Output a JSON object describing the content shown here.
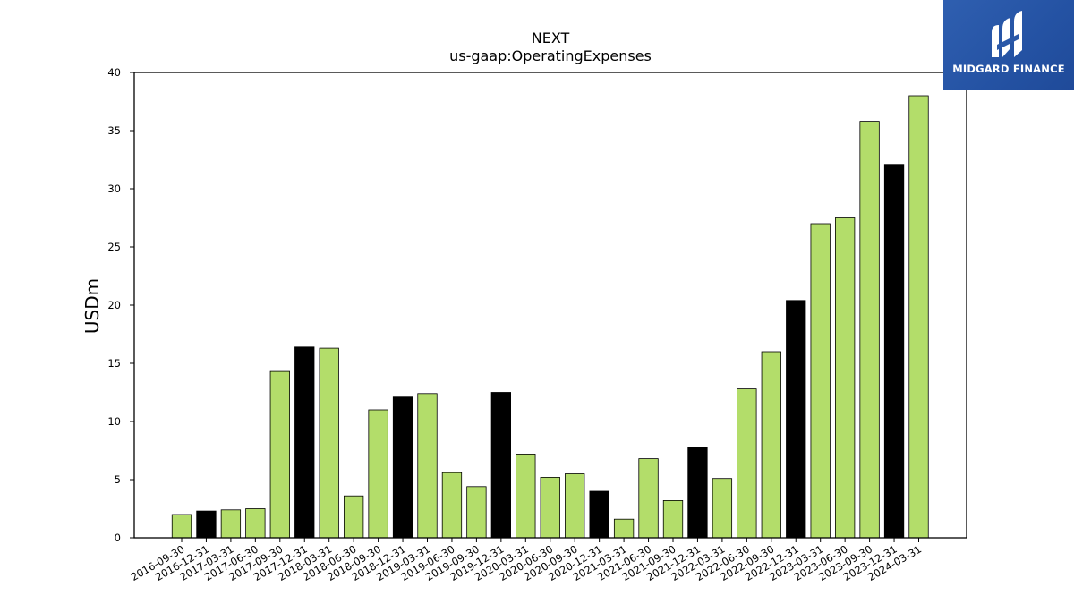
{
  "chart_data": {
    "type": "bar",
    "title": "NEXT",
    "subtitle": "us-gaap:OperatingExpenses",
    "xlabel": "",
    "ylabel": "USDm",
    "ylim": [
      0,
      40
    ],
    "yticks": [
      0,
      5,
      10,
      15,
      20,
      25,
      30,
      35,
      40
    ],
    "grid": false,
    "categories": [
      "2016-09-30",
      "2016-12-31",
      "2017-03-31",
      "2017-06-30",
      "2017-09-30",
      "2017-12-31",
      "2018-03-31",
      "2018-06-30",
      "2018-09-30",
      "2018-12-31",
      "2019-03-31",
      "2019-06-30",
      "2019-09-30",
      "2019-12-31",
      "2020-03-31",
      "2020-06-30",
      "2020-09-30",
      "2020-12-31",
      "2021-03-31",
      "2021-06-30",
      "2021-09-30",
      "2021-12-31",
      "2022-03-31",
      "2022-06-30",
      "2022-09-30",
      "2022-12-31",
      "2023-03-31",
      "2023-06-30",
      "2023-09-30",
      "2023-12-31",
      "2024-03-31"
    ],
    "values": [
      2.0,
      2.3,
      2.4,
      2.5,
      14.3,
      16.4,
      16.3,
      3.6,
      11.0,
      12.1,
      12.4,
      5.6,
      4.4,
      12.5,
      7.2,
      5.2,
      5.5,
      4.0,
      1.6,
      6.8,
      3.2,
      7.8,
      5.1,
      12.8,
      16.0,
      20.4,
      27.0,
      27.5,
      35.8,
      32.1,
      38.0
    ],
    "bar_colors": [
      "#b3dd6a",
      "#000000",
      "#b3dd6a",
      "#b3dd6a",
      "#b3dd6a",
      "#000000",
      "#b3dd6a",
      "#b3dd6a",
      "#b3dd6a",
      "#000000",
      "#b3dd6a",
      "#b3dd6a",
      "#b3dd6a",
      "#000000",
      "#b3dd6a",
      "#b3dd6a",
      "#b3dd6a",
      "#000000",
      "#b3dd6a",
      "#b3dd6a",
      "#b3dd6a",
      "#000000",
      "#b3dd6a",
      "#b3dd6a",
      "#b3dd6a",
      "#000000",
      "#b3dd6a",
      "#b3dd6a",
      "#b3dd6a",
      "#000000",
      "#b3dd6a"
    ],
    "colors": {
      "quarter": "#b3dd6a",
      "year_end": "#000000",
      "edge": "#000000"
    }
  },
  "logo": {
    "text": "MIDGARD FINANCE",
    "background": "#2a58a8"
  }
}
